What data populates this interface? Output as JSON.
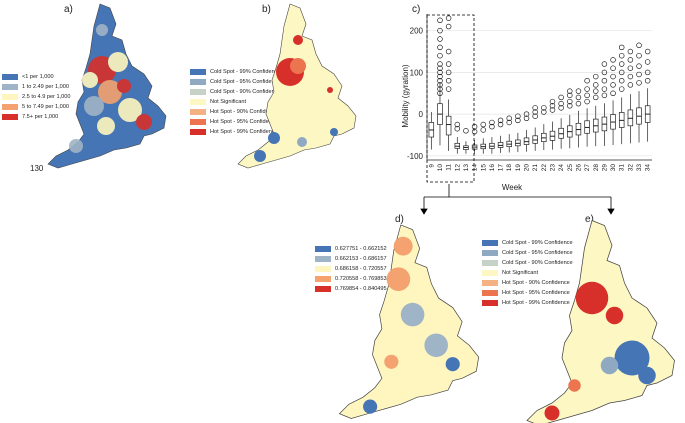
{
  "panels": {
    "a": {
      "label": "a)",
      "legend": [
        {
          "text": "<1 per 1,000",
          "color": "#4575b4"
        },
        {
          "text": "1 to 2.49 per 1,000",
          "color": "#9fb4c6"
        },
        {
          "text": "2.5 to 4.9 per 1,000",
          "color": "#fff6bf"
        },
        {
          "text": "5 to 7.49 per 1,000",
          "color": "#f4a26f"
        },
        {
          "text": "7.5+ per 1,000",
          "color": "#d7302a"
        }
      ],
      "map_note": "130"
    },
    "b": {
      "label": "b)",
      "legend": [
        {
          "text": "Cold Spot - 99% Confidence",
          "color": "#4575b4"
        },
        {
          "text": "Cold Spot - 95% Confidence",
          "color": "#8fa9c2"
        },
        {
          "text": "Cold Spot - 90% Confidence",
          "color": "#c6d1c8"
        },
        {
          "text": "Not Significant",
          "color": "#fdf7c3"
        },
        {
          "text": "Hot Spot - 90% Confidence",
          "color": "#f4b183"
        },
        {
          "text": "Hot Spot - 95% Confidence",
          "color": "#ec7550"
        },
        {
          "text": "Hot Spot - 99% Confidence",
          "color": "#d7302a"
        }
      ]
    },
    "c": {
      "label": "c)"
    },
    "d": {
      "label": "d)",
      "legend": [
        {
          "text": "0.627751 - 0.662152",
          "color": "#4575b4"
        },
        {
          "text": "0.662153 - 0.686157",
          "color": "#9fb4c6"
        },
        {
          "text": "0.686158 - 0.720557",
          "color": "#fff6bf"
        },
        {
          "text": "0.720558 - 0.769853",
          "color": "#f4a26f"
        },
        {
          "text": "0.769854 - 0.840495",
          "color": "#d7302a"
        }
      ]
    },
    "e": {
      "label": "e)",
      "legend": [
        {
          "text": "Cold Spot - 99% Confidence",
          "color": "#4575b4"
        },
        {
          "text": "Cold Spot - 95% Confidence",
          "color": "#8fa9c2"
        },
        {
          "text": "Cold Spot - 90% Confidence",
          "color": "#c6d1c8"
        },
        {
          "text": "Not Significant",
          "color": "#fdf7c3"
        },
        {
          "text": "Hot Spot - 90% Confidence",
          "color": "#f4b183"
        },
        {
          "text": "Hot Spot - 95% Confidence",
          "color": "#ec7550"
        },
        {
          "text": "Hot Spot - 99% Confidence",
          "color": "#d7302a"
        }
      ]
    }
  },
  "chart_data": {
    "type": "box",
    "xlabel": "Week",
    "ylabel": "Mobility (gyration)",
    "ylim": [
      -110,
      240
    ],
    "yticks": [
      -100,
      0,
      100,
      200
    ],
    "grid": true,
    "categories": [
      "9",
      "10",
      "11",
      "12",
      "13",
      "14",
      "15",
      "16",
      "17",
      "18",
      "19",
      "20",
      "21",
      "22",
      "23",
      "24",
      "25",
      "26",
      "27",
      "28",
      "29",
      "30",
      "31",
      "32",
      "33",
      "34"
    ],
    "series": [
      {
        "boxes": [
          {
            "q1": -55,
            "median": -38,
            "q3": -20,
            "lo": -85,
            "hi": 5
          },
          {
            "q1": -25,
            "median": 0,
            "q3": 25,
            "lo": -75,
            "hi": 75
          },
          {
            "q1": -50,
            "median": -25,
            "q3": -5,
            "lo": -88,
            "hi": 35
          },
          {
            "q1": -82,
            "median": -77,
            "q3": -70,
            "lo": -95,
            "hi": -55
          },
          {
            "q1": -85,
            "median": -80,
            "q3": -76,
            "lo": -95,
            "hi": -65
          },
          {
            "q1": -84,
            "median": -79,
            "q3": -74,
            "lo": -95,
            "hi": -62
          },
          {
            "q1": -83,
            "median": -78,
            "q3": -72,
            "lo": -95,
            "hi": -58
          },
          {
            "q1": -82,
            "median": -77,
            "q3": -70,
            "lo": -95,
            "hi": -55
          },
          {
            "q1": -80,
            "median": -75,
            "q3": -68,
            "lo": -93,
            "hi": -52
          },
          {
            "q1": -78,
            "median": -72,
            "q3": -65,
            "lo": -92,
            "hi": -48
          },
          {
            "q1": -76,
            "median": -70,
            "q3": -62,
            "lo": -91,
            "hi": -45
          },
          {
            "q1": -73,
            "median": -66,
            "q3": -57,
            "lo": -90,
            "hi": -38
          },
          {
            "q1": -70,
            "median": -62,
            "q3": -52,
            "lo": -88,
            "hi": -32
          },
          {
            "q1": -66,
            "median": -57,
            "q3": -46,
            "lo": -86,
            "hi": -24
          },
          {
            "q1": -63,
            "median": -53,
            "q3": -41,
            "lo": -85,
            "hi": -18
          },
          {
            "q1": -58,
            "median": -47,
            "q3": -34,
            "lo": -83,
            "hi": -10
          },
          {
            "q1": -55,
            "median": -42,
            "q3": -28,
            "lo": -82,
            "hi": -2
          },
          {
            "q1": -50,
            "median": -37,
            "q3": -22,
            "lo": -80,
            "hi": 8
          },
          {
            "q1": -46,
            "median": -32,
            "q3": -16,
            "lo": -78,
            "hi": 14
          },
          {
            "q1": -43,
            "median": -28,
            "q3": -12,
            "lo": -77,
            "hi": 20
          },
          {
            "q1": -40,
            "median": -24,
            "q3": -7,
            "lo": -76,
            "hi": 26
          },
          {
            "q1": -36,
            "median": -19,
            "q3": -1,
            "lo": -74,
            "hi": 33
          },
          {
            "q1": -32,
            "median": -15,
            "q3": 4,
            "lo": -72,
            "hi": 40
          },
          {
            "q1": -28,
            "median": -10,
            "q3": 10,
            "lo": -70,
            "hi": 48
          },
          {
            "q1": -24,
            "median": -5,
            "q3": 15,
            "lo": -68,
            "hi": 55
          },
          {
            "q1": -20,
            "median": 0,
            "q3": 20,
            "lo": -66,
            "hi": 62
          }
        ],
        "outliers": [
          [],
          [
            50,
            60,
            70,
            80,
            90,
            100,
            110,
            120,
            140,
            160,
            180,
            200,
            225
          ],
          [
            60,
            80,
            100,
            120,
            150,
            210,
            230
          ],
          [
            -35,
            -25
          ],
          [
            -40
          ],
          [
            -42,
            -30
          ],
          [
            -38,
            -25
          ],
          [
            -30,
            -20
          ],
          [
            -25,
            -15
          ],
          [
            -20,
            -10
          ],
          [
            -15,
            -5
          ],
          [
            -10,
            0
          ],
          [
            -5,
            5,
            15
          ],
          [
            5,
            15
          ],
          [
            10,
            20,
            30
          ],
          [
            15,
            25,
            40
          ],
          [
            20,
            30,
            45,
            55
          ],
          [
            25,
            40,
            55
          ],
          [
            30,
            45,
            60,
            80
          ],
          [
            40,
            55,
            70,
            90
          ],
          [
            45,
            60,
            80,
            100,
            120
          ],
          [
            50,
            70,
            90,
            110,
            130
          ],
          [
            60,
            80,
            100,
            120,
            140,
            160
          ],
          [
            70,
            90,
            110,
            130,
            150
          ],
          [
            75,
            95,
            115,
            140,
            165
          ],
          [
            80,
            100,
            125,
            150
          ]
        ]
      }
    ]
  }
}
